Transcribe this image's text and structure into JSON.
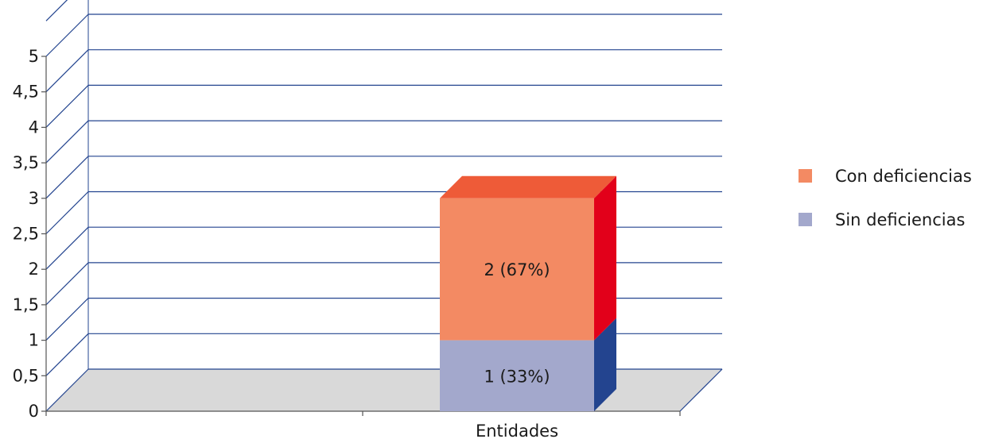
{
  "chart_data": {
    "type": "bar",
    "stacked": true,
    "three_d": true,
    "categories": [
      "Entidades"
    ],
    "series": [
      {
        "name": "Sin deficiencias",
        "values": [
          1
        ],
        "label": "1 (33%)",
        "color": "#a3a8cc",
        "side_color": "#23448f",
        "top_color": "#23448f"
      },
      {
        "name": "Con deficiencias",
        "values": [
          2
        ],
        "label": "2 (67%)",
        "color": "#f38a63",
        "side_color": "#e2001a",
        "top_color": "#ee5b38"
      }
    ],
    "y_ticks": [
      "0",
      "0,5",
      "1",
      "1,5",
      "2",
      "2,5",
      "3",
      "3,5",
      "4",
      "4,5",
      "5"
    ],
    "ylim": [
      0,
      5
    ],
    "grid": true,
    "grid_color": "#23448f",
    "floor_color": "#d9d9d9",
    "legend": {
      "position": "right",
      "order": [
        "Con deficiencias",
        "Sin deficiencias"
      ]
    },
    "title": "",
    "xlabel": "",
    "ylabel": ""
  }
}
